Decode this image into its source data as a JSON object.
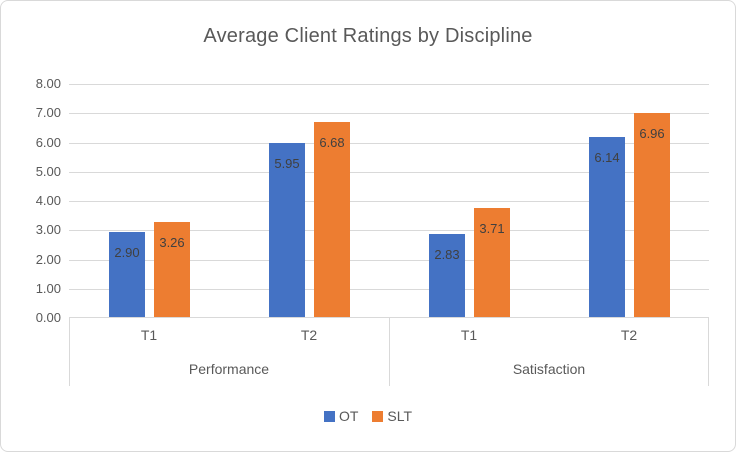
{
  "chart_data": {
    "type": "bar",
    "title": "Average Client Ratings by Discipline",
    "categories": [
      "T1",
      "T2",
      "T1",
      "T2"
    ],
    "groups": [
      {
        "label": "Performance",
        "from": 0,
        "to": 1
      },
      {
        "label": "Satisfaction",
        "from": 2,
        "to": 3
      }
    ],
    "series": [
      {
        "name": "OT",
        "color": "#4472C4",
        "values": [
          2.9,
          5.95,
          2.83,
          6.14
        ]
      },
      {
        "name": "SLT",
        "color": "#ED7D31",
        "values": [
          3.26,
          6.68,
          3.71,
          6.96
        ]
      }
    ],
    "value_labels": [
      [
        "2.90",
        "5.95",
        "2.83",
        "6.14"
      ],
      [
        "3.26",
        "6.68",
        "3.71",
        "6.96"
      ]
    ],
    "ylim": [
      0,
      8
    ],
    "ytick_step": 1,
    "ytick_labels": [
      "0.00",
      "1.00",
      "2.00",
      "3.00",
      "4.00",
      "5.00",
      "6.00",
      "7.00",
      "8.00"
    ],
    "grid": true,
    "legend_position": "bottom",
    "colors": {
      "grid": "#D9D9D9",
      "border": "#D9D9D9",
      "axis_text": "#595959",
      "title_text": "#595959",
      "value_label_text": "#404040"
    }
  }
}
